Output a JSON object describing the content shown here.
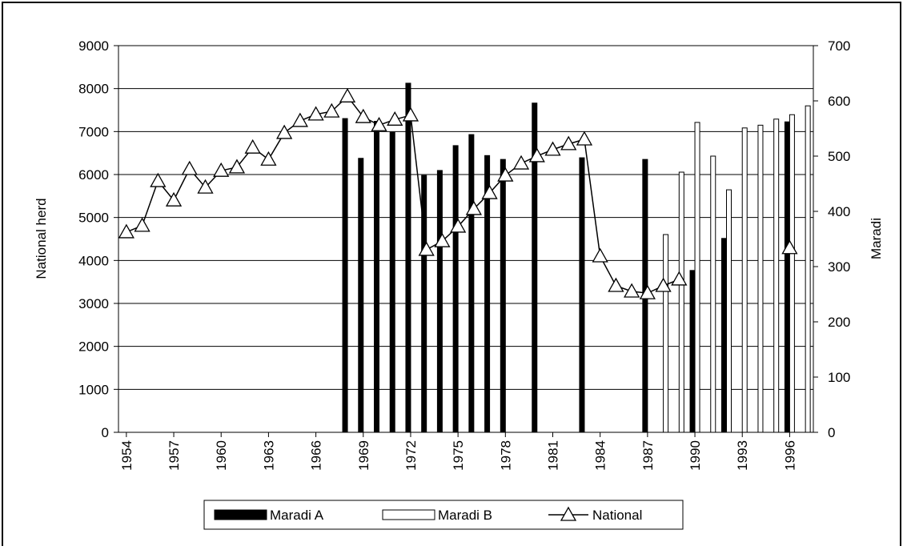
{
  "chart_data": {
    "type": "bar",
    "x": [
      1954,
      1955,
      1956,
      1957,
      1958,
      1959,
      1960,
      1961,
      1962,
      1963,
      1964,
      1965,
      1966,
      1967,
      1968,
      1969,
      1970,
      1971,
      1972,
      1973,
      1974,
      1975,
      1976,
      1977,
      1978,
      1979,
      1980,
      1981,
      1982,
      1983,
      1984,
      1985,
      1986,
      1987,
      1988,
      1989,
      1990,
      1991,
      1992,
      1993,
      1994,
      1995,
      1996,
      1997
    ],
    "xlim": [
      1953.5,
      1997.5
    ],
    "xticks": [
      1954,
      1957,
      1960,
      1963,
      1966,
      1969,
      1972,
      1975,
      1978,
      1981,
      1984,
      1987,
      1990,
      1993,
      1996
    ],
    "ylabel": "National herd",
    "ylim": [
      0,
      9000
    ],
    "yticks": [
      0,
      1000,
      2000,
      3000,
      4000,
      5000,
      6000,
      7000,
      8000,
      9000
    ],
    "y2label": "Maradi",
    "y2lim": [
      0,
      700
    ],
    "y2ticks": [
      0,
      100,
      200,
      300,
      400,
      500,
      600,
      700
    ],
    "grid": true,
    "legend": "bottom",
    "series": [
      {
        "name": "Maradi A",
        "type": "bar",
        "axis": "y2",
        "color": "#000000",
        "values": [
          null,
          null,
          null,
          null,
          null,
          null,
          null,
          null,
          null,
          null,
          null,
          null,
          null,
          null,
          568,
          496,
          563,
          543,
          632,
          465,
          474,
          519,
          539,
          501,
          494,
          null,
          596,
          null,
          null,
          497,
          null,
          null,
          null,
          494,
          null,
          null,
          293,
          null,
          351,
          null,
          null,
          null,
          562,
          null
        ]
      },
      {
        "name": "Maradi B",
        "type": "bar",
        "axis": "y2",
        "color": "#ffffff",
        "values": [
          null,
          null,
          null,
          null,
          null,
          null,
          null,
          null,
          null,
          null,
          null,
          null,
          null,
          null,
          null,
          null,
          null,
          null,
          null,
          null,
          null,
          null,
          null,
          null,
          null,
          null,
          null,
          null,
          null,
          null,
          null,
          null,
          null,
          null,
          358,
          471,
          561,
          500,
          439,
          551,
          556,
          567,
          575,
          591
        ]
      },
      {
        "name": "National",
        "type": "line",
        "color": "#000000",
        "values": [
          4660,
          4810,
          5850,
          5400,
          6130,
          5700,
          6090,
          6170,
          6630,
          6350,
          6970,
          7250,
          7400,
          7470,
          7820,
          7340,
          7150,
          7280,
          7380,
          4250,
          4450,
          4790,
          5200,
          5570,
          5980,
          6260,
          6430,
          6580,
          6710,
          6820,
          4100,
          3410,
          3280,
          3240,
          3410,
          3560,
          null,
          null,
          null,
          null,
          null,
          null,
          4290,
          null
        ]
      }
    ]
  }
}
